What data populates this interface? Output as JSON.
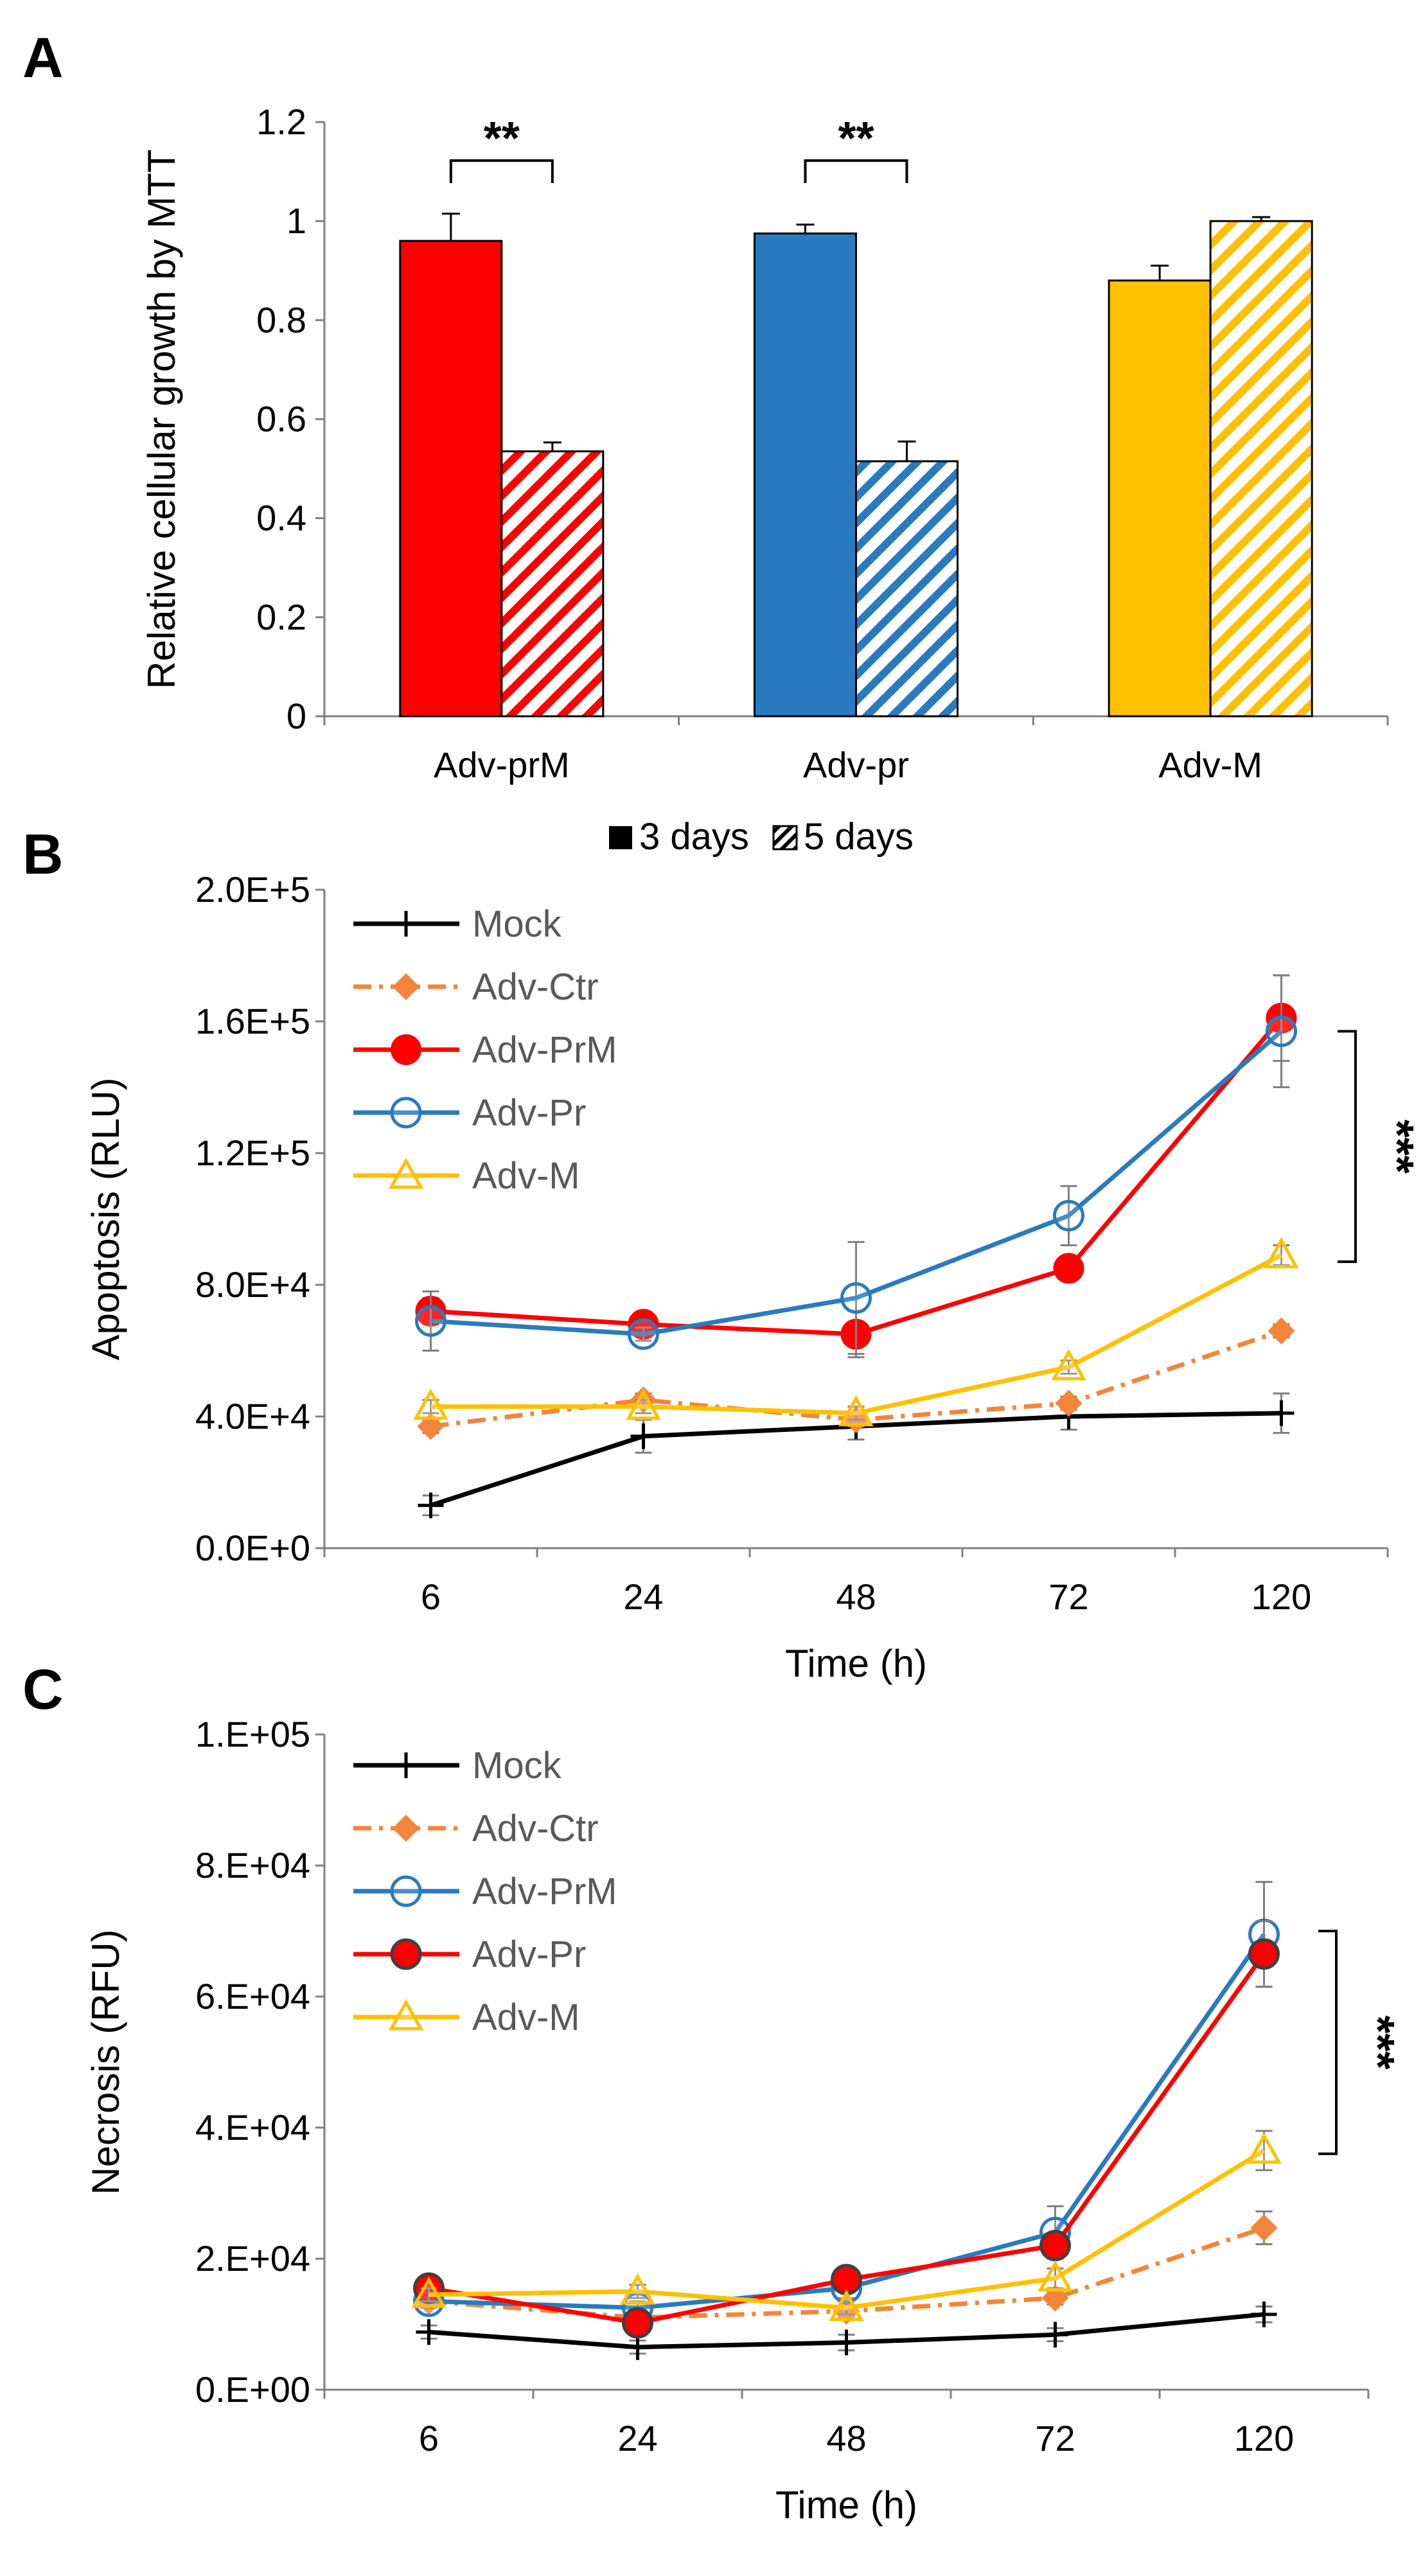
{
  "colors": {
    "red": "#ff0000",
    "blue": "#2a7abf",
    "gold": "#ffc000",
    "orange": "#f4843a",
    "black": "#000000",
    "gray": "#7f7f7f",
    "yellow_line": "#ffc000"
  },
  "chart_data": [
    {
      "panel": "A",
      "type": "bar",
      "title": "",
      "xlabel": "",
      "ylabel": "Relative cellular growth by MTT",
      "ylim": [
        0,
        1.2
      ],
      "yticks": [
        "0",
        "0.2",
        "0.4",
        "0.6",
        "0.8",
        "1",
        "1.2"
      ],
      "categories": [
        "Adv-prM",
        "Adv-pr",
        "Adv-M"
      ],
      "category_colors": [
        "#ff0000",
        "#2a7abf",
        "#ffc000"
      ],
      "series": [
        {
          "name": "3 days",
          "pattern": "solid",
          "values": [
            0.96,
            0.975,
            0.88
          ],
          "errors": [
            0.055,
            0.018,
            0.03
          ]
        },
        {
          "name": "5 days",
          "pattern": "hatched",
          "values": [
            0.535,
            0.515,
            1.0
          ],
          "errors": [
            0.018,
            0.04,
            0.008
          ]
        }
      ],
      "significance": [
        {
          "category": "Adv-prM",
          "label": "**"
        },
        {
          "category": "Adv-pr",
          "label": "**"
        }
      ],
      "legend": [
        "3 days",
        "5 days"
      ]
    },
    {
      "panel": "B",
      "type": "line",
      "xlabel": "Time (h)",
      "ylabel": "Apoptosis (RLU)",
      "x": [
        "6",
        "24",
        "48",
        "72",
        "120"
      ],
      "ylim": [
        0,
        200000
      ],
      "yticks": [
        "0.0E+0",
        "4.0E+4",
        "8.0E+4",
        "1.2E+5",
        "1.6E+5",
        "2.0E+5"
      ],
      "series": [
        {
          "name": "Mock",
          "color": "#000000",
          "marker": "plus",
          "dash": "solid",
          "values": [
            13000,
            34000,
            37000,
            40000,
            41000
          ],
          "errors": [
            3000,
            5000,
            4000,
            4000,
            6000
          ]
        },
        {
          "name": "Adv-Ctr",
          "color": "#f4843a",
          "marker": "diamond",
          "dash": "dashdot",
          "values": [
            37000,
            45000,
            39000,
            44000,
            66000
          ],
          "errors": [
            2000,
            2000,
            2000,
            2000,
            2000
          ]
        },
        {
          "name": "Adv-PrM",
          "color": "#ff0000",
          "marker": "filled-circle",
          "dash": "solid",
          "values": [
            72000,
            68000,
            65000,
            85000,
            161000
          ],
          "errors": [
            4000,
            2000,
            7000,
            3000,
            13000
          ]
        },
        {
          "name": "Adv-Pr",
          "color": "#2a7abf",
          "marker": "open-circle",
          "dash": "solid",
          "values": [
            69000,
            65000,
            76000,
            101000,
            157000
          ],
          "errors": [
            9000,
            2000,
            17000,
            9000,
            17000
          ]
        },
        {
          "name": "Adv-M",
          "color": "#ffc000",
          "marker": "open-triangle",
          "dash": "solid",
          "values": [
            43000,
            43000,
            41000,
            55000,
            89000
          ],
          "errors": [
            2000,
            2000,
            2000,
            2000,
            3000
          ]
        }
      ],
      "significance": [
        {
          "label": "***"
        }
      ]
    },
    {
      "panel": "C",
      "type": "line",
      "xlabel": "Time (h)",
      "ylabel": "Necrosis (RFU)",
      "x": [
        "6",
        "24",
        "48",
        "72",
        "120"
      ],
      "ylim": [
        0,
        100000
      ],
      "yticks": [
        "0.E+00",
        "2.E+04",
        "4.E+04",
        "6.E+04",
        "8.E+04",
        "1.E+05"
      ],
      "series": [
        {
          "name": "Mock",
          "color": "#000000",
          "marker": "plus",
          "dash": "solid",
          "values": [
            8800,
            6500,
            7200,
            8400,
            11500
          ],
          "errors": [
            1000,
            1000,
            1200,
            1000,
            1200
          ]
        },
        {
          "name": "Adv-Ctr",
          "color": "#f4843a",
          "marker": "diamond",
          "dash": "dashdot",
          "values": [
            13500,
            11000,
            12000,
            14000,
            24700
          ],
          "errors": [
            1000,
            1000,
            1000,
            1000,
            2500
          ]
        },
        {
          "name": "Adv-PrM",
          "color": "#2a7abf",
          "marker": "open-circle",
          "dash": "solid",
          "values": [
            13500,
            12500,
            15500,
            24000,
            69500
          ],
          "errors": [
            1000,
            1000,
            1500,
            4000,
            8000
          ]
        },
        {
          "name": "Adv-Pr",
          "color": "#ff0000",
          "marker": "dark-circle",
          "dash": "solid",
          "values": [
            15500,
            10200,
            16800,
            22000,
            66500
          ],
          "errors": [
            1000,
            1000,
            1500,
            1500,
            5000
          ]
        },
        {
          "name": "Adv-M",
          "color": "#ffc000",
          "marker": "open-triangle",
          "dash": "solid",
          "values": [
            14500,
            15000,
            12500,
            17000,
            36500
          ],
          "errors": [
            1000,
            1000,
            1000,
            1500,
            3000
          ]
        }
      ],
      "significance": [
        {
          "label": "***"
        }
      ]
    }
  ]
}
